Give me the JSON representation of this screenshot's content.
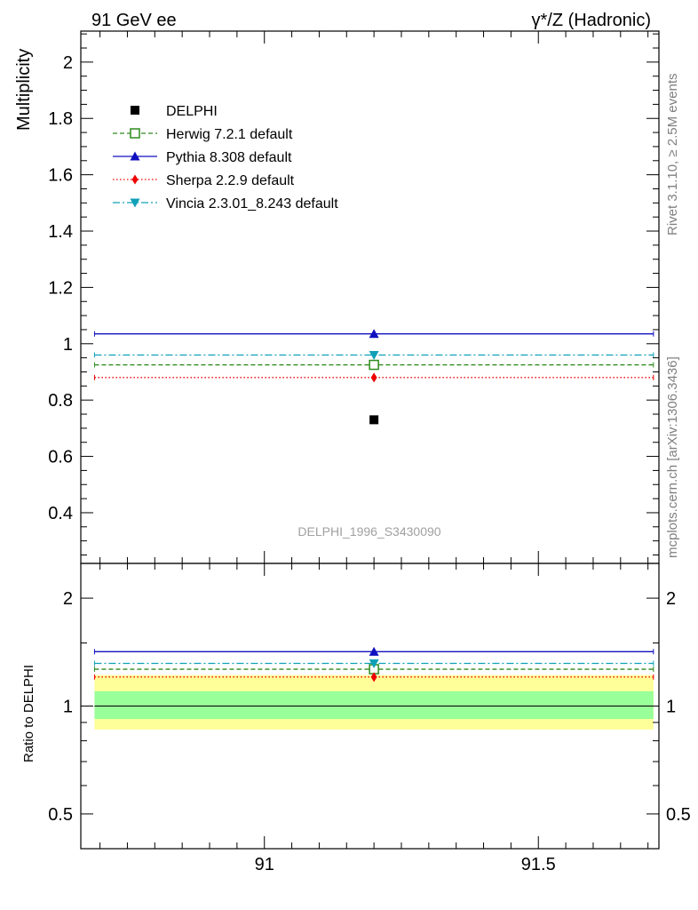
{
  "header": {
    "left": "91 GeV ee",
    "right": "γ*/Z (Hadronic)"
  },
  "side_labels": {
    "rivet": "Rivet 3.1.10, ≥ 2.5M events",
    "mcplots": "mcplots.cern.ch [arXiv:1306.3436]"
  },
  "colors": {
    "data": "#000000",
    "herwig": "#2e8b1e",
    "pythia": "#1010c0",
    "sherpa": "#ee0000",
    "vincia": "#10a0b8",
    "band_inner": "#99ff99",
    "band_outer": "#ffff99",
    "watermark": "#a0a0a0"
  },
  "chart_data": [
    {
      "type": "scatter",
      "panel": "main",
      "ylabel": "Multiplicity",
      "watermark": "DELPHI_1996_S3430090",
      "xlim": [
        90.665,
        91.72
      ],
      "ylim": [
        0.22,
        2.11
      ],
      "yticks": [
        0.4,
        0.6,
        0.8,
        1,
        1.2,
        1.4,
        1.6,
        1.8,
        2
      ],
      "ytick_labels": [
        "0.4",
        "0.6",
        "0.8",
        "1",
        "1.2",
        "1.4",
        "1.6",
        "1.8",
        "2"
      ],
      "legend_position": "top-left",
      "x_point": 91.2,
      "bin": [
        90.69,
        91.71
      ],
      "series": [
        {
          "key": "data",
          "name": "DELPHI",
          "value": 0.73,
          "marker": "square-filled",
          "line": "none"
        },
        {
          "key": "herwig",
          "name": "Herwig 7.2.1 default",
          "value": 0.925,
          "marker": "square-open",
          "line": "dashed"
        },
        {
          "key": "pythia",
          "name": "Pythia 8.308 default",
          "value": 1.035,
          "marker": "triangle-up",
          "line": "solid"
        },
        {
          "key": "sherpa",
          "name": "Sherpa 2.2.9 default",
          "value": 0.88,
          "marker": "diamond",
          "line": "dotted"
        },
        {
          "key": "vincia",
          "name": "Vincia 2.3.01_8.243 default",
          "value": 0.96,
          "marker": "triangle-down",
          "line": "dashdot"
        }
      ]
    },
    {
      "type": "scatter",
      "panel": "ratio",
      "ylabel": "Ratio to DELPHI",
      "ylog": true,
      "xlim": [
        90.665,
        91.72
      ],
      "ylim": [
        0.4,
        2.5
      ],
      "yticks": [
        0.5,
        1,
        2
      ],
      "ytick_labels": [
        "0.5",
        "1",
        "2"
      ],
      "xticks": [
        91,
        91.5
      ],
      "xtick_labels": [
        "91",
        "91.5"
      ],
      "x_point": 91.2,
      "bin": [
        90.69,
        91.71
      ],
      "band_inner": [
        0.92,
        1.1
      ],
      "band_outer": [
        0.86,
        1.22
      ],
      "series": [
        {
          "key": "herwig",
          "value": 1.267,
          "marker": "square-open",
          "line": "dashed"
        },
        {
          "key": "pythia",
          "value": 1.418,
          "marker": "triangle-up",
          "line": "solid"
        },
        {
          "key": "sherpa",
          "value": 1.205,
          "marker": "diamond",
          "line": "dotted"
        },
        {
          "key": "vincia",
          "value": 1.315,
          "marker": "triangle-down",
          "line": "dashdot"
        }
      ]
    }
  ]
}
